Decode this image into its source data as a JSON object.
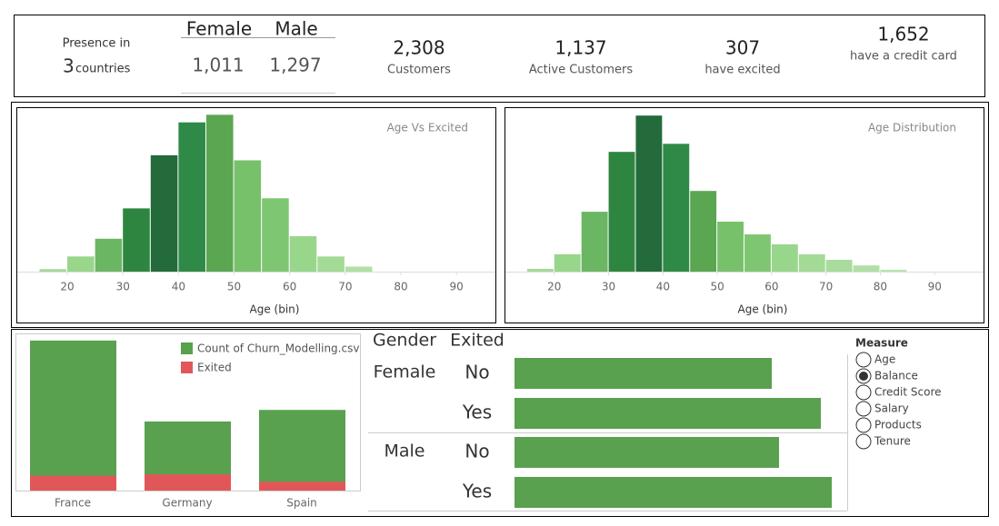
{
  "kpis": {
    "presence_label": "Presence in",
    "countries_value": "3",
    "countries_label": "countries",
    "gender_headers": [
      "Female",
      "Male"
    ],
    "gender_values": [
      "1,011",
      "1,297"
    ],
    "stats": [
      {
        "value": "2,308",
        "label": "Customers"
      },
      {
        "value": "1,137",
        "label": "Active Customers"
      },
      {
        "value": "307",
        "label": "have excited"
      },
      {
        "value": "1,652",
        "label": "have a credit card"
      }
    ]
  },
  "chart_data": [
    {
      "type": "histogram",
      "title": "Age Vs Excited",
      "xlabel": "Age (bin)",
      "bins": [
        15,
        20,
        25,
        30,
        35,
        40,
        45,
        50,
        55,
        60,
        65,
        70,
        75
      ],
      "values": [
        1,
        6,
        13,
        25,
        46,
        59,
        62,
        44,
        29,
        14,
        6,
        2
      ],
      "colors": [
        "#a5d99a",
        "#98d68c",
        "#6bb663",
        "#2e8540",
        "#236b3a",
        "#2f8a47",
        "#5aa651",
        "#78c16b",
        "#7fc672",
        "#98d68c",
        "#a3da96",
        "#b1e0a6"
      ],
      "xlim": [
        11,
        97
      ],
      "xticks": [
        20,
        30,
        40,
        50,
        60,
        70,
        80,
        90
      ],
      "ylim": [
        0,
        65
      ]
    },
    {
      "type": "histogram",
      "title": "Age Distribution",
      "xlabel": "Age (bin)",
      "bins": [
        15,
        20,
        25,
        30,
        35,
        40,
        45,
        50,
        55,
        60,
        65,
        70,
        75,
        80,
        85
      ],
      "values": [
        9,
        56,
        193,
        386,
        503,
        412,
        260,
        161,
        120,
        88,
        56,
        38,
        20,
        6
      ],
      "colors": [
        "#a5d99a",
        "#98d68c",
        "#6bb663",
        "#2e8540",
        "#236b3a",
        "#2f8a47",
        "#5aa651",
        "#78c16b",
        "#7fc672",
        "#98d68c",
        "#a3da96",
        "#a8dc9c",
        "#b1e0a6",
        "#b8e3ad"
      ],
      "xlim": [
        11,
        99
      ],
      "xticks": [
        20,
        30,
        40,
        50,
        60,
        70,
        80,
        90
      ],
      "ylim": [
        0,
        530
      ]
    },
    {
      "type": "bar",
      "categories": [
        "France",
        "Germany",
        "Spain"
      ],
      "series": [
        {
          "name": "Count of Churn_Modelling.csv",
          "color": "#59a14f",
          "values": [
            1155,
            532,
            621
          ]
        },
        {
          "name": "Exited",
          "color": "#e15759",
          "values": [
            114,
            125,
            68
          ]
        }
      ],
      "ylim": [
        0,
        1210
      ],
      "legend": "upper right"
    },
    {
      "type": "hbar",
      "row_headers": [
        "Gender",
        "Exited"
      ],
      "color": "#59a14f",
      "groups": [
        {
          "name": "Female",
          "categories": [
            "No",
            "Yes"
          ],
          "values": [
            70750,
            84250
          ]
        },
        {
          "name": "Male",
          "categories": [
            "No",
            "Yes"
          ],
          "values": [
            72750,
            87250
          ]
        }
      ],
      "xlim": [
        0,
        90000
      ]
    }
  ],
  "measure": {
    "title": "Measure",
    "options": [
      "Age",
      "Balance",
      "Credit Score",
      "Salary",
      "Products",
      "Tenure"
    ],
    "selected": "Balance"
  }
}
